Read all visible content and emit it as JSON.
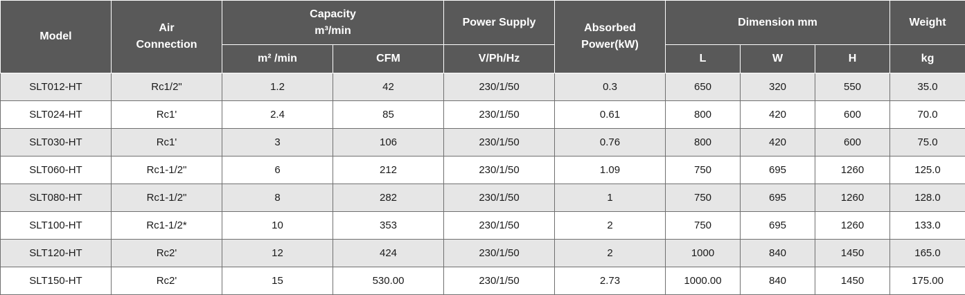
{
  "headers": {
    "model": "Model",
    "air_connection_line1": "Air",
    "air_connection_line2": "Connection",
    "capacity_line1": "Capacity",
    "capacity_line2": "m³/min",
    "power_supply": "Power Supply",
    "absorbed_line1": "Absorbed",
    "absorbed_line2": "Power(kW)",
    "dimension": "Dimension mm",
    "weight": "Weight",
    "sub_m3min": "m² /min",
    "sub_cfm": "CFM",
    "sub_vphhz": "V/Ph/Hz",
    "sub_l": "L",
    "sub_w": "W",
    "sub_h": "H",
    "sub_kg": "kg"
  },
  "rows": [
    {
      "model": "SLT012-HT",
      "air": "Rc1/2\"",
      "m3min": "1.2",
      "cfm": "42",
      "power": "230/1/50",
      "absorbed": "0.3",
      "l": "650",
      "w": "320",
      "h": "550",
      "kg": "35.0"
    },
    {
      "model": "SLT024-HT",
      "air": "Rc1'",
      "m3min": "2.4",
      "cfm": "85",
      "power": "230/1/50",
      "absorbed": "0.61",
      "l": "800",
      "w": "420",
      "h": "600",
      "kg": "70.0"
    },
    {
      "model": "SLT030-HT",
      "air": "Rc1'",
      "m3min": "3",
      "cfm": "106",
      "power": "230/1/50",
      "absorbed": "0.76",
      "l": "800",
      "w": "420",
      "h": "600",
      "kg": "75.0"
    },
    {
      "model": "SLT060-HT",
      "air": "Rc1-1/2\"",
      "m3min": "6",
      "cfm": "212",
      "power": "230/1/50",
      "absorbed": "1.09",
      "l": "750",
      "w": "695",
      "h": "1260",
      "kg": "125.0"
    },
    {
      "model": "SLT080-HT",
      "air": "Rc1-1/2\"",
      "m3min": "8",
      "cfm": "282",
      "power": "230/1/50",
      "absorbed": "1",
      "l": "750",
      "w": "695",
      "h": "1260",
      "kg": "128.0"
    },
    {
      "model": "SLT100-HT",
      "air": "Rc1-1/2*",
      "m3min": "10",
      "cfm": "353",
      "power": "230/1/50",
      "absorbed": "2",
      "l": "750",
      "w": "695",
      "h": "1260",
      "kg": "133.0"
    },
    {
      "model": "SLT120-HT",
      "air": "Rc2'",
      "m3min": "12",
      "cfm": "424",
      "power": "230/1/50",
      "absorbed": "2",
      "l": "1000",
      "w": "840",
      "h": "1450",
      "kg": "165.0"
    },
    {
      "model": "SLT150-HT",
      "air": "Rc2'",
      "m3min": "15",
      "cfm": "530.00",
      "power": "230/1/50",
      "absorbed": "2.73",
      "l": "1000.00",
      "w": "840",
      "h": "1450",
      "kg": "175.00"
    }
  ]
}
